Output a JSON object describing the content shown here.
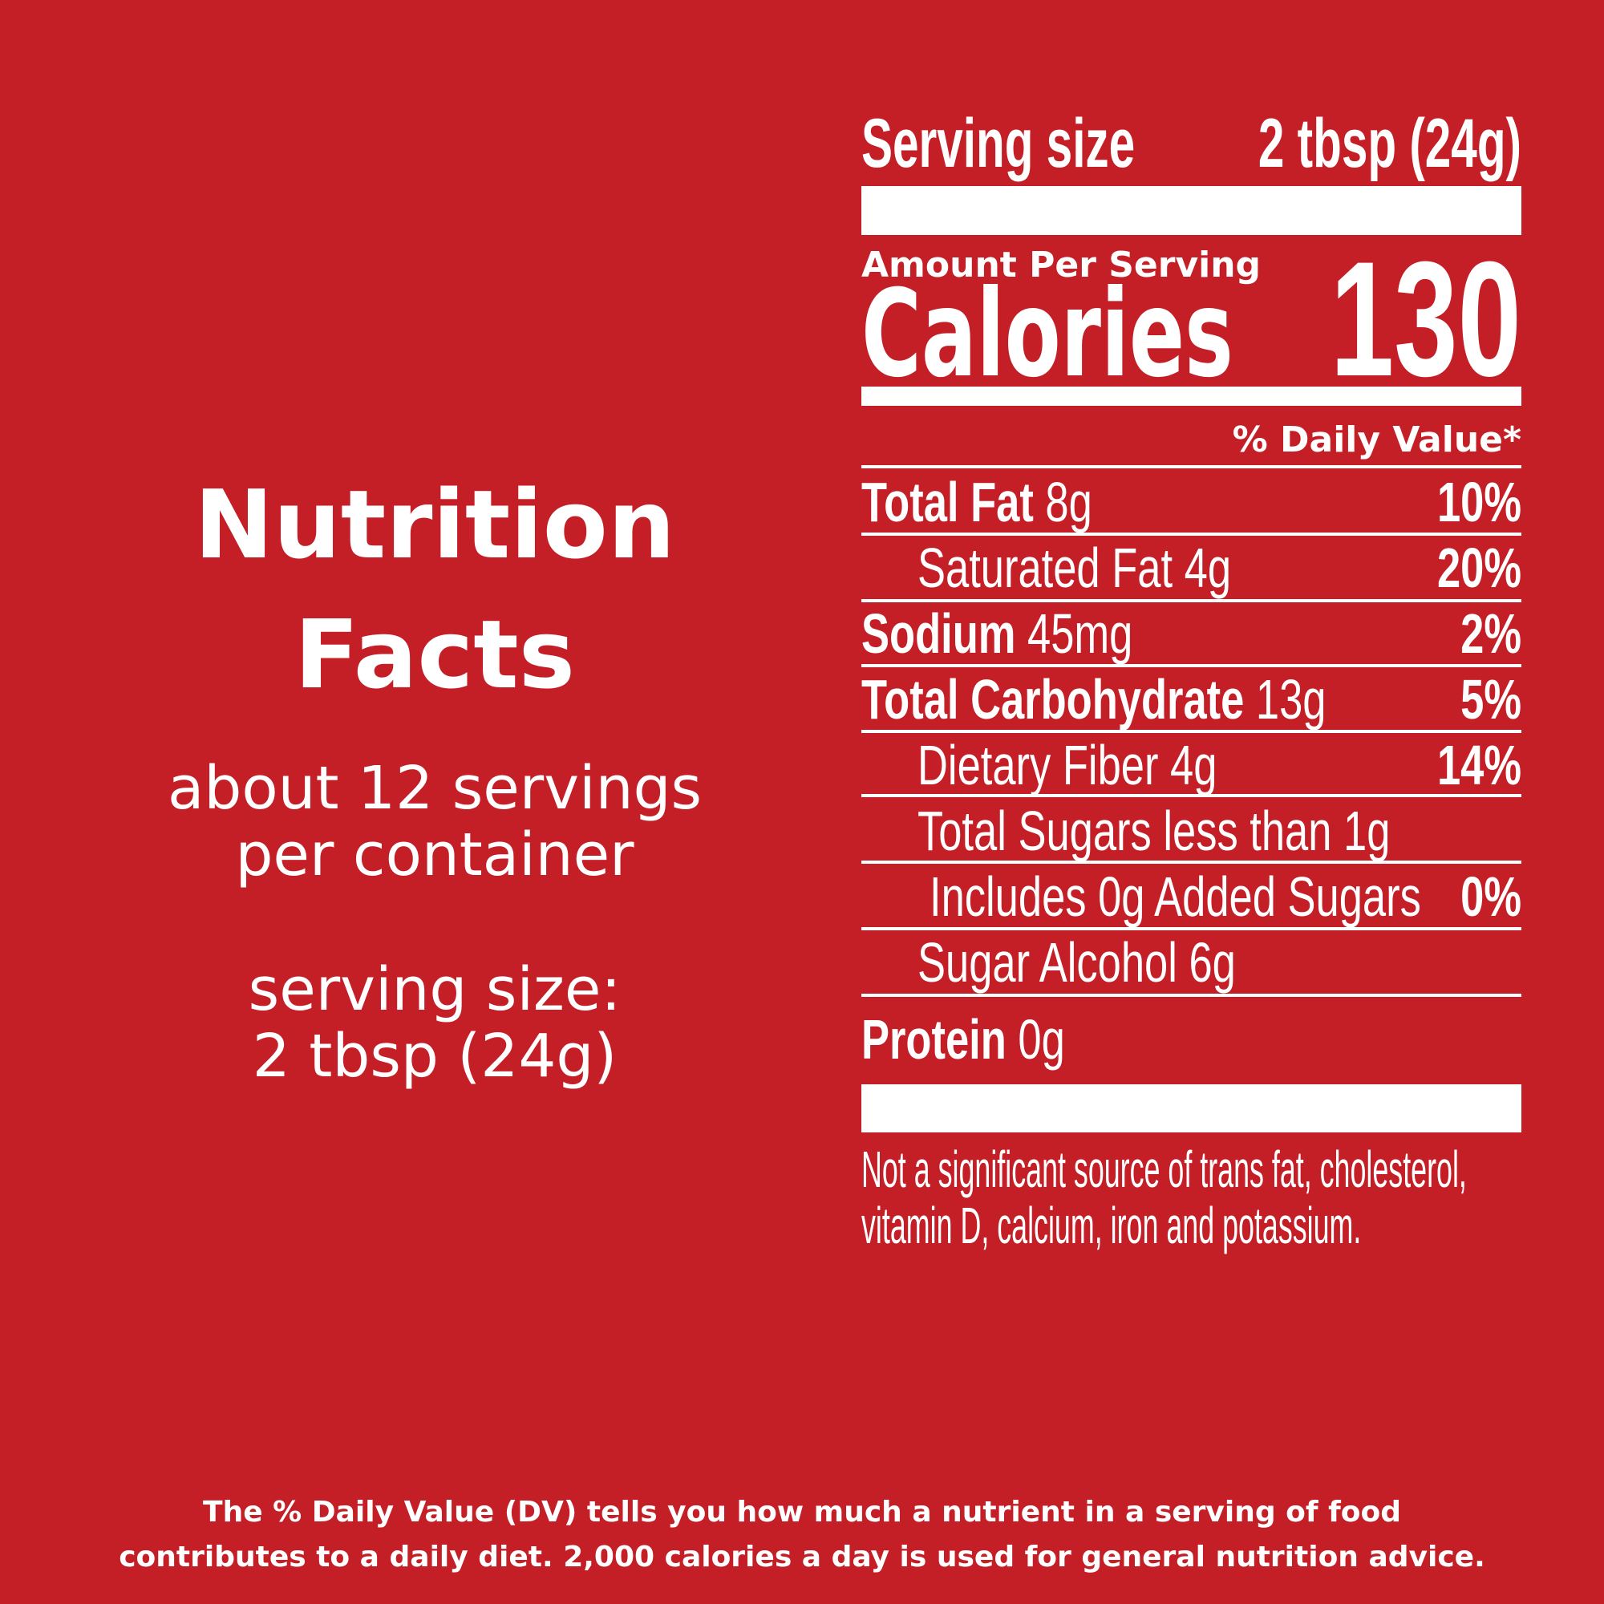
{
  "left": {
    "title_lines": [
      "Nutrition",
      "Facts"
    ],
    "servings_lines": [
      "about 12 servings",
      "per container"
    ],
    "serving_size_lines": [
      "serving size:",
      "2 tbsp (24g)"
    ]
  },
  "label": {
    "serving_size_label": "Serving size",
    "serving_size_value": "2 tbsp (24g)",
    "amount_per_serving": "Amount Per Serving",
    "calories_label": "Calories",
    "calories": "130",
    "daily_value_header": "% Daily Value*",
    "rows": [
      {
        "name": "Total Fat",
        "amount": "8g",
        "dv": "10%"
      },
      {
        "label": "Saturated Fat 4g",
        "dv": "20%"
      },
      {
        "name": "Sodium",
        "amount": "45mg",
        "dv": "2%"
      },
      {
        "name": "Total Carbohydrate",
        "amount": "13g",
        "dv": "5%"
      },
      {
        "label": "Dietary Fiber 4g",
        "dv": "14%"
      },
      {
        "label": "Total Sugars less than 1g"
      },
      {
        "label": "Includes 0g Added Sugars",
        "dv": "0%"
      },
      {
        "label": "Sugar Alcohol 6g"
      },
      {
        "name": "Protein",
        "amount": "0g"
      }
    ],
    "footnote_lines": [
      "Not a significant source of trans fat, cholesterol,",
      "vitamin D, calcium, iron and potassium."
    ]
  },
  "footer": {
    "lines": [
      "The % Daily Value (DV) tells you how much a nutrient in a serving of food",
      "contributes to a daily diet. 2,000 calories a day is used for general nutrition advice."
    ]
  }
}
